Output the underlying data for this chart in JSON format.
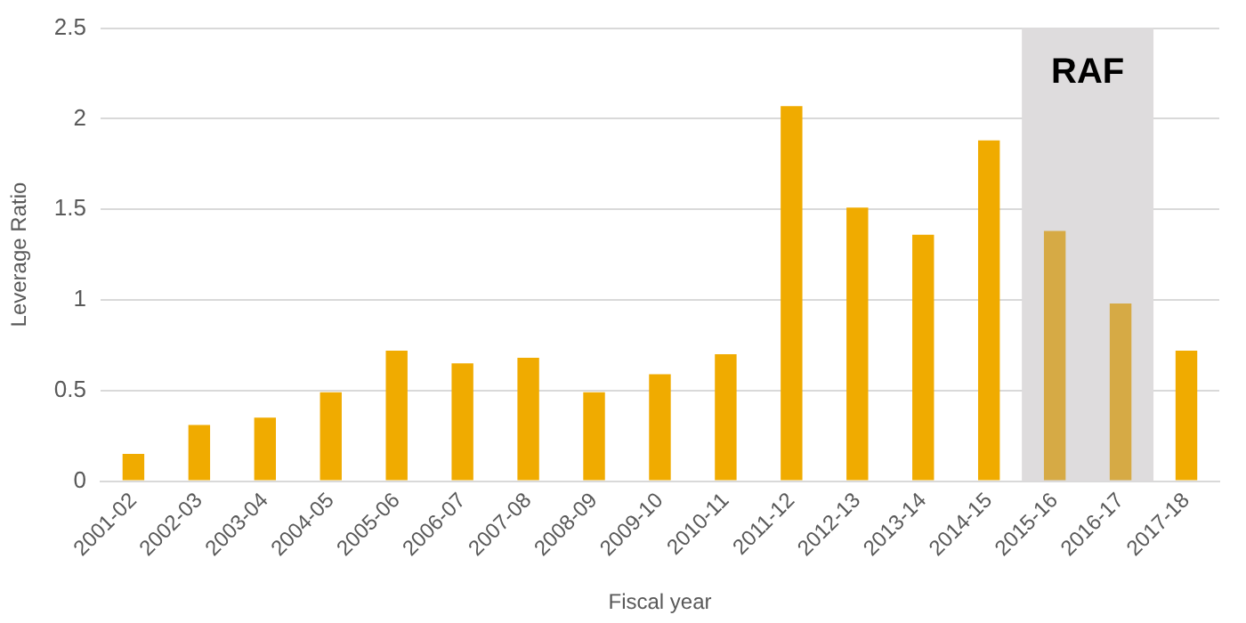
{
  "chart_data": {
    "type": "bar",
    "xlabel": "Fiscal year",
    "ylabel": "Leverage Ratio",
    "categories": [
      "2001-02",
      "2002-03",
      "2003-04",
      "2004-05",
      "2005-06",
      "2006-07",
      "2007-08",
      "2008-09",
      "2009-10",
      "2010-11",
      "2011-12",
      "2012-13",
      "2013-14",
      "2014-15",
      "2015-16",
      "2016-17",
      "2017-18"
    ],
    "values": [
      0.15,
      0.31,
      0.35,
      0.49,
      0.72,
      0.65,
      0.68,
      0.49,
      0.59,
      0.7,
      2.07,
      1.51,
      1.36,
      1.88,
      1.38,
      0.98,
      0.72
    ],
    "colors": [
      "#f0ab00",
      "#f0ab00",
      "#f0ab00",
      "#f0ab00",
      "#f0ab00",
      "#f0ab00",
      "#f0ab00",
      "#f0ab00",
      "#f0ab00",
      "#f0ab00",
      "#f0ab00",
      "#f0ab00",
      "#f0ab00",
      "#f0ab00",
      "#d6aa45",
      "#d6aa45",
      "#f0ab00"
    ],
    "ylim": [
      0,
      2.5
    ],
    "yticks": [
      0,
      0.5,
      1,
      1.5,
      2,
      2.5
    ],
    "grid": "y",
    "legend": false,
    "bands": [
      {
        "axis": "x",
        "from": "2015-16",
        "to": "2016-17",
        "label": "RAF",
        "color": "#dedcdd"
      }
    ]
  }
}
